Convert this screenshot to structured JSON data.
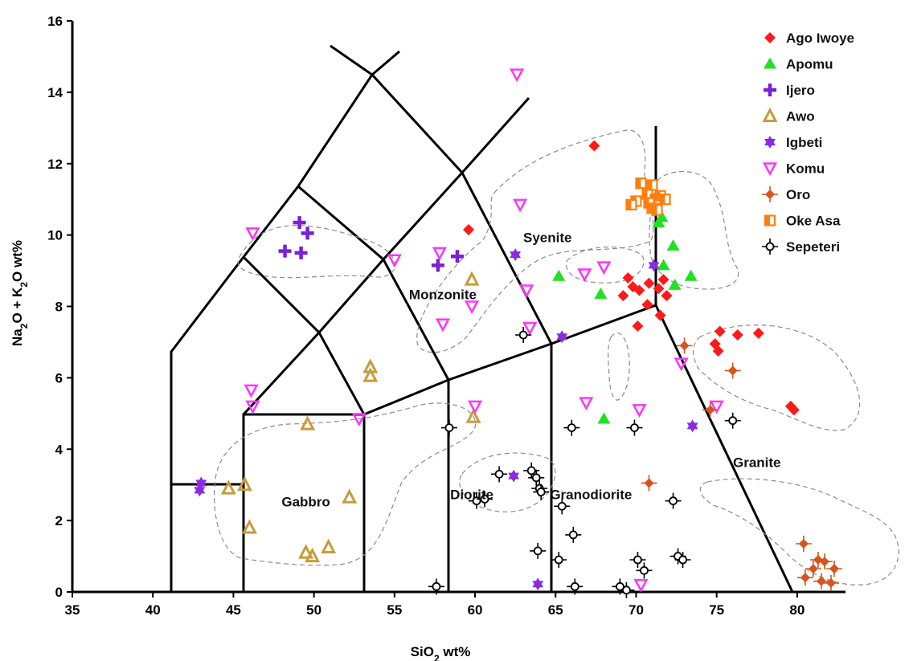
{
  "chart_data": {
    "type": "scatter",
    "xlabel": "SiO2 wt%",
    "ylabel": "Na2O + K2O wt%",
    "xlim": [
      35,
      83
    ],
    "ylim": [
      0,
      16
    ],
    "x_ticks": [
      35,
      40,
      45,
      50,
      55,
      60,
      65,
      70,
      75,
      80
    ],
    "y_ticks": [
      0,
      2,
      4,
      6,
      8,
      10,
      12,
      14,
      16
    ],
    "grid": false,
    "legend_position": "top-right",
    "field_labels": [
      {
        "text": "Syenite",
        "x": 64.5,
        "y": 9.8
      },
      {
        "text": "Monzonite",
        "x": 58,
        "y": 8.2
      },
      {
        "text": "Diorite",
        "x": 59.8,
        "y": 2.6
      },
      {
        "text": "Granodiorite",
        "x": 67.2,
        "y": 2.6
      },
      {
        "text": "Gabbro",
        "x": 49.5,
        "y": 2.4
      },
      {
        "text": "Granite",
        "x": 77.5,
        "y": 3.5
      }
    ],
    "series": [
      {
        "name": "Ago Iwoye",
        "marker": "diamond",
        "color": "#ff1a1a",
        "points": [
          [
            67.4,
            12.5
          ],
          [
            59.6,
            10.15
          ],
          [
            69.5,
            8.8
          ],
          [
            69.2,
            8.3
          ],
          [
            69.8,
            8.55
          ],
          [
            70.2,
            8.45
          ],
          [
            70.8,
            8.65
          ],
          [
            71.4,
            8.5
          ],
          [
            71.7,
            8.75
          ],
          [
            71.9,
            8.3
          ],
          [
            70.7,
            8.05
          ],
          [
            71.5,
            7.75
          ],
          [
            70.1,
            7.45
          ],
          [
            75.2,
            7.3
          ],
          [
            74.9,
            6.95
          ],
          [
            75.1,
            6.75
          ],
          [
            76.3,
            7.2
          ],
          [
            77.6,
            7.25
          ],
          [
            79.6,
            5.2
          ],
          [
            79.8,
            5.1
          ]
        ]
      },
      {
        "name": "Apomu",
        "marker": "triangle-up",
        "color": "#22e022",
        "points": [
          [
            71.6,
            10.5
          ],
          [
            71.4,
            10.35
          ],
          [
            72.3,
            9.7
          ],
          [
            71.7,
            9.15
          ],
          [
            73.4,
            8.85
          ],
          [
            72.4,
            8.6
          ],
          [
            65.2,
            8.85
          ],
          [
            67.8,
            8.35
          ],
          [
            68.0,
            4.85
          ]
        ]
      },
      {
        "name": "Ijero",
        "marker": "plus",
        "color": "#7a1fd6",
        "points": [
          [
            49.1,
            10.35
          ],
          [
            49.6,
            10.05
          ],
          [
            48.2,
            9.55
          ],
          [
            49.2,
            9.5
          ],
          [
            57.7,
            9.15
          ],
          [
            58.9,
            9.4
          ]
        ]
      },
      {
        "name": "Awo",
        "marker": "triangle-open",
        "color": "#c99b3a",
        "points": [
          [
            59.8,
            8.75
          ],
          [
            53.5,
            6.3
          ],
          [
            53.5,
            6.05
          ],
          [
            59.9,
            4.9
          ],
          [
            49.6,
            4.7
          ],
          [
            44.7,
            2.9
          ],
          [
            45.7,
            3.0
          ],
          [
            52.2,
            2.65
          ],
          [
            46.0,
            1.8
          ],
          [
            49.5,
            1.1
          ],
          [
            49.9,
            1.0
          ],
          [
            50.9,
            1.25
          ]
        ]
      },
      {
        "name": "Igbeti",
        "marker": "star",
        "color": "#8a2be2",
        "points": [
          [
            62.5,
            9.45
          ],
          [
            71.1,
            9.15
          ],
          [
            65.4,
            7.15
          ],
          [
            73.5,
            4.65
          ],
          [
            43.0,
            3.05
          ],
          [
            42.9,
            2.85
          ],
          [
            62.4,
            3.25
          ],
          [
            63.9,
            0.22
          ]
        ]
      },
      {
        "name": "Komu",
        "marker": "triangle-down-open",
        "color": "#ff33ff",
        "points": [
          [
            62.6,
            14.5
          ],
          [
            62.8,
            10.85
          ],
          [
            46.2,
            10.05
          ],
          [
            55.0,
            9.3
          ],
          [
            57.8,
            9.5
          ],
          [
            66.8,
            8.9
          ],
          [
            68.0,
            9.1
          ],
          [
            63.2,
            8.45
          ],
          [
            59.8,
            8.0
          ],
          [
            58.0,
            7.5
          ],
          [
            63.4,
            7.4
          ],
          [
            72.8,
            6.4
          ],
          [
            46.1,
            5.65
          ],
          [
            46.2,
            5.2
          ],
          [
            52.8,
            4.85
          ],
          [
            60.0,
            5.2
          ],
          [
            66.9,
            5.3
          ],
          [
            70.2,
            5.1
          ],
          [
            75.0,
            5.2
          ],
          [
            70.3,
            0.2
          ]
        ]
      },
      {
        "name": "Oro",
        "marker": "diamond-cross",
        "color": "#d6541e",
        "points": [
          [
            73.0,
            6.9
          ],
          [
            76.0,
            6.2
          ],
          [
            74.6,
            5.1
          ],
          [
            70.8,
            3.05
          ],
          [
            80.4,
            1.35
          ],
          [
            81.3,
            0.9
          ],
          [
            80.5,
            0.4
          ],
          [
            81.0,
            0.65
          ],
          [
            81.7,
            0.85
          ],
          [
            82.3,
            0.65
          ],
          [
            81.5,
            0.3
          ],
          [
            82.1,
            0.25
          ]
        ]
      },
      {
        "name": "Oke Asa",
        "marker": "square-half",
        "color": "#ff7f0e",
        "points": [
          [
            70.0,
            10.95
          ],
          [
            70.3,
            11.45
          ],
          [
            70.7,
            11.15
          ],
          [
            71.0,
            11.4
          ],
          [
            71.2,
            11.0
          ],
          [
            71.5,
            11.1
          ],
          [
            71.8,
            11.0
          ],
          [
            70.8,
            10.9
          ],
          [
            71.0,
            10.75
          ],
          [
            71.3,
            10.7
          ],
          [
            69.7,
            10.85
          ]
        ]
      },
      {
        "name": "Sepeteri",
        "marker": "circle-cross",
        "color": "#000000",
        "points": [
          [
            63.0,
            7.2
          ],
          [
            58.4,
            4.6
          ],
          [
            66.0,
            4.6
          ],
          [
            69.9,
            4.6
          ],
          [
            76.0,
            4.8
          ],
          [
            61.5,
            3.3
          ],
          [
            63.5,
            3.4
          ],
          [
            63.8,
            3.2
          ],
          [
            64.0,
            2.9
          ],
          [
            64.1,
            2.8
          ],
          [
            60.1,
            2.55
          ],
          [
            60.6,
            2.6
          ],
          [
            65.4,
            2.4
          ],
          [
            72.3,
            2.55
          ],
          [
            66.1,
            1.6
          ],
          [
            63.9,
            1.15
          ],
          [
            65.2,
            0.9
          ],
          [
            70.1,
            0.9
          ],
          [
            70.5,
            0.6
          ],
          [
            72.6,
            1.0
          ],
          [
            72.9,
            0.9
          ],
          [
            57.6,
            0.15
          ],
          [
            66.2,
            0.15
          ],
          [
            69.0,
            0.15
          ],
          [
            69.4,
            0.05
          ]
        ]
      }
    ]
  }
}
